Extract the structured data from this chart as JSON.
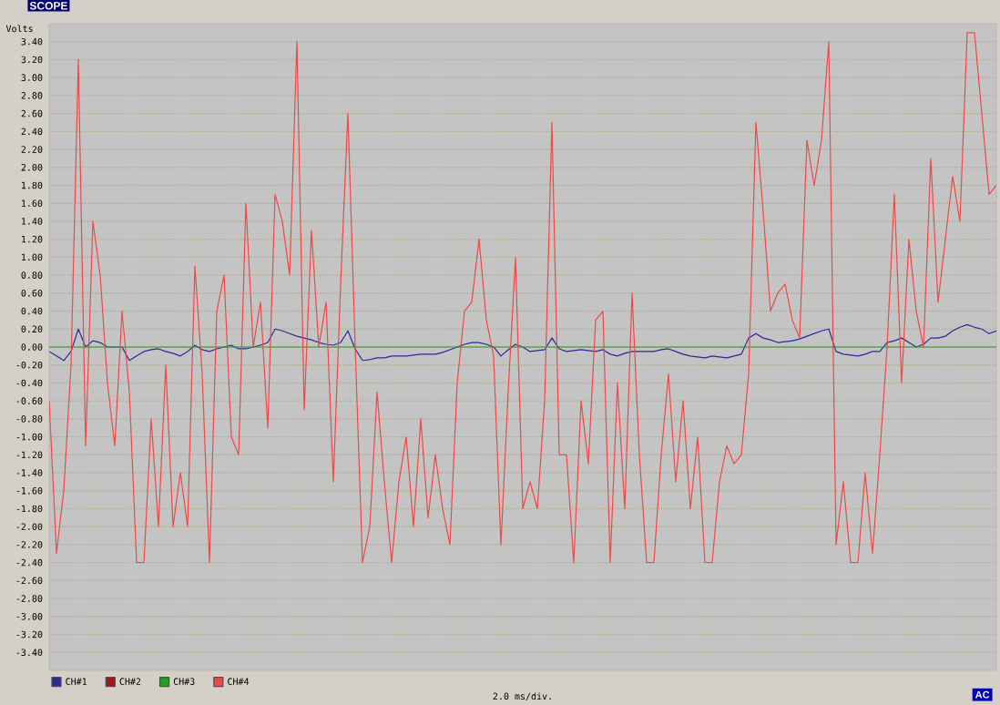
{
  "chart_data": {
    "type": "line",
    "title": "SCOPE",
    "xlabel": "2.0 ms/div.",
    "ylabel": "Volts",
    "categories": [
      null,
      null,
      null,
      null,
      null,
      null,
      null,
      null,
      null,
      null,
      null,
      null,
      null,
      null,
      null,
      null,
      null,
      null,
      null,
      null,
      null,
      null,
      null,
      null,
      null,
      null,
      null,
      null,
      null,
      null,
      null,
      null,
      null,
      null,
      null,
      null,
      null,
      null,
      null,
      null,
      null,
      null,
      null,
      null,
      null,
      null,
      null,
      null,
      null,
      null,
      null,
      null,
      null,
      null,
      null,
      null,
      null,
      null,
      null,
      null,
      null,
      null,
      null,
      null,
      null,
      null,
      null,
      null,
      null,
      null,
      null,
      null,
      null,
      null,
      null,
      null,
      null,
      null,
      null,
      null,
      null,
      null,
      null,
      null,
      null,
      null,
      null,
      null,
      null,
      null,
      null,
      null,
      null,
      null,
      null,
      null,
      null,
      null,
      null,
      null,
      null,
      null,
      null,
      null,
      null,
      null,
      null,
      null,
      null,
      null,
      null,
      null,
      null,
      null,
      null,
      null,
      null,
      null,
      null,
      null,
      null,
      null,
      null,
      null,
      null,
      null,
      null,
      null,
      null,
      null,
      null
    ],
    "ylim": [
      -3.6,
      3.6
    ],
    "yticks": [
      {
        "value": -3.4,
        "label": "-3.40"
      },
      {
        "value": -3.2,
        "label": "-3.20"
      },
      {
        "value": -3.0,
        "label": "-3.00"
      },
      {
        "value": -2.8,
        "label": "-2.80"
      },
      {
        "value": -2.6,
        "label": "-2.60"
      },
      {
        "value": -2.4,
        "label": "-2.40"
      },
      {
        "value": -2.2,
        "label": "-2.20"
      },
      {
        "value": -2.0,
        "label": "-2.00"
      },
      {
        "value": -1.8,
        "label": "-1.80"
      },
      {
        "value": -1.6,
        "label": "-1.60"
      },
      {
        "value": -1.4,
        "label": "-1.40"
      },
      {
        "value": -1.2,
        "label": "-1.20"
      },
      {
        "value": -1.0,
        "label": "-1.00"
      },
      {
        "value": -0.8,
        "label": "-0.80"
      },
      {
        "value": -0.6,
        "label": "-0.60"
      },
      {
        "value": -0.4,
        "label": "-0.40"
      },
      {
        "value": -0.2,
        "label": "-0.20"
      },
      {
        "value": 0,
        "label": "0.00"
      },
      {
        "value": 0.2,
        "label": "0.20"
      },
      {
        "value": 0.4,
        "label": "0.40"
      },
      {
        "value": 0.6,
        "label": "0.60"
      },
      {
        "value": 0.8,
        "label": "0.80"
      },
      {
        "value": 1.0,
        "label": "1.00"
      },
      {
        "value": 1.2,
        "label": "1.20"
      },
      {
        "value": 1.4,
        "label": "1.40"
      },
      {
        "value": 1.6,
        "label": "1.60"
      },
      {
        "value": 1.8,
        "label": "1.80"
      },
      {
        "value": 2.0,
        "label": "2.00"
      },
      {
        "value": 2.2,
        "label": "2.20"
      },
      {
        "value": 2.4,
        "label": "2.40"
      },
      {
        "value": 2.6,
        "label": "2.60"
      },
      {
        "value": 2.8,
        "label": "2.80"
      },
      {
        "value": 3.0,
        "label": "3.00"
      },
      {
        "value": 3.2,
        "label": "3.20"
      },
      {
        "value": 3.4,
        "label": "3.40"
      }
    ],
    "tick_labels": "y",
    "grid": "y",
    "legend": "bottom",
    "marker": "none",
    "annotations": [
      "AC"
    ],
    "series": [
      {
        "name": "CH#1",
        "color": "#2a2a9a",
        "values": [
          -0.05,
          -0.1,
          -0.15,
          -0.05,
          0.2,
          0.0,
          0.07,
          0.05,
          0.0,
          0.0,
          0.0,
          -0.15,
          -0.1,
          -0.05,
          -0.03,
          -0.02,
          -0.05,
          -0.07,
          -0.1,
          -0.05,
          0.02,
          -0.03,
          -0.05,
          -0.02,
          0.0,
          0.02,
          -0.02,
          -0.02,
          0.0,
          0.02,
          0.05,
          0.2,
          0.18,
          0.15,
          0.12,
          0.1,
          0.08,
          0.05,
          0.03,
          0.02,
          0.05,
          0.18,
          -0.02,
          -0.15,
          -0.14,
          -0.12,
          -0.12,
          -0.1,
          -0.1,
          -0.1,
          -0.09,
          -0.08,
          -0.08,
          -0.08,
          -0.06,
          -0.03,
          0.0,
          0.03,
          0.05,
          0.05,
          0.03,
          0.0,
          -0.1,
          -0.03,
          0.03,
          0.0,
          -0.05,
          -0.04,
          -0.03,
          0.1,
          -0.02,
          -0.05,
          -0.04,
          -0.03,
          -0.04,
          -0.05,
          -0.03,
          -0.08,
          -0.1,
          -0.07,
          -0.05,
          -0.05,
          -0.05,
          -0.05,
          -0.03,
          -0.02,
          -0.05,
          -0.08,
          -0.1,
          -0.11,
          -0.12,
          -0.1,
          -0.11,
          -0.12,
          -0.1,
          -0.08,
          0.1,
          0.15,
          0.1,
          0.08,
          0.05,
          0.06,
          0.07,
          0.09,
          0.12,
          0.15,
          0.18,
          0.2,
          -0.05,
          -0.08,
          -0.09,
          -0.1,
          -0.08,
          -0.05,
          -0.05,
          0.05,
          0.07,
          0.1,
          0.05,
          0.0,
          0.03,
          0.1,
          0.1,
          0.12,
          0.18,
          0.22,
          0.25,
          0.22,
          0.2,
          0.15,
          0.18
        ]
      },
      {
        "name": "CH#2",
        "color": "#a01818",
        "values": [
          null,
          null,
          null,
          null,
          null,
          null,
          null,
          null,
          null,
          null,
          null,
          null,
          null,
          null,
          null,
          null,
          null,
          null,
          null,
          null,
          null,
          null,
          null,
          null,
          null,
          null,
          null,
          null,
          null,
          null,
          null,
          null,
          null,
          null,
          null,
          null,
          null,
          null,
          null,
          null,
          null,
          null,
          null,
          null,
          null,
          null,
          null,
          null,
          null,
          null,
          null,
          null,
          null,
          null,
          null,
          null,
          null,
          null,
          null,
          null,
          null,
          null,
          null,
          null,
          null,
          null,
          null,
          null,
          null,
          null,
          null,
          null,
          null,
          null,
          null,
          null,
          null,
          null,
          null,
          null,
          null,
          null,
          null,
          null,
          null,
          null,
          null,
          null,
          null,
          null,
          null,
          null,
          null,
          null,
          null,
          null,
          null,
          null,
          null,
          null,
          null,
          null,
          null,
          null,
          null,
          null,
          null,
          null,
          null,
          null,
          null,
          null,
          null,
          null,
          null,
          null,
          null,
          null,
          null,
          null,
          null,
          null,
          null,
          null,
          null,
          null,
          null,
          null,
          null,
          null,
          null
        ]
      },
      {
        "name": "CH#3",
        "color": "#22a022",
        "values": [
          0,
          0,
          0,
          0,
          0,
          0,
          0,
          0,
          0,
          0,
          0,
          0,
          0,
          0,
          0,
          0,
          0,
          0,
          0,
          0,
          0,
          0,
          0,
          0,
          0,
          0,
          0,
          0,
          0,
          0,
          0,
          0,
          0,
          0,
          0,
          0,
          0,
          0,
          0,
          0,
          0,
          0,
          0,
          0,
          0,
          0,
          0,
          0,
          0,
          0,
          0,
          0,
          0,
          0,
          0,
          0,
          0,
          0,
          0,
          0,
          0,
          0,
          0,
          0,
          0,
          0,
          0,
          0,
          0,
          0,
          0,
          0,
          0,
          0,
          0,
          0,
          0,
          0,
          0,
          0,
          0,
          0,
          0,
          0,
          0,
          0,
          0,
          0,
          0,
          0,
          0,
          0,
          0,
          0,
          0,
          0,
          0,
          0,
          0,
          0,
          0,
          0,
          0,
          0,
          0,
          0,
          0,
          0,
          0,
          0,
          0,
          0,
          0,
          0,
          0,
          0,
          0,
          0,
          0,
          0,
          0,
          0,
          0,
          0,
          0,
          0,
          0,
          0,
          0,
          0,
          0
        ]
      },
      {
        "name": "CH#4",
        "color": "#f04848",
        "values": [
          -0.6,
          -2.3,
          -1.6,
          -0.2,
          3.2,
          -1.1,
          1.4,
          0.8,
          -0.4,
          -1.1,
          0.4,
          -0.5,
          -2.4,
          -2.4,
          -0.8,
          -2.0,
          -0.2,
          -2.0,
          -1.4,
          -2.0,
          0.9,
          -0.3,
          -2.4,
          0.4,
          0.8,
          -1.0,
          -1.2,
          1.6,
          0.0,
          0.5,
          -0.9,
          1.7,
          1.4,
          0.8,
          3.4,
          -0.7,
          1.3,
          0.0,
          0.5,
          -1.5,
          0.7,
          2.6,
          0.0,
          -2.4,
          -2.0,
          -0.5,
          -1.5,
          -2.4,
          -1.5,
          -1.0,
          -2.0,
          -0.8,
          -1.9,
          -1.2,
          -1.8,
          -2.2,
          -0.4,
          0.4,
          0.5,
          1.2,
          0.3,
          -0.1,
          -2.2,
          -0.5,
          1.0,
          -1.8,
          -1.5,
          -1.8,
          -0.6,
          2.5,
          -1.2,
          -1.2,
          -2.4,
          -0.6,
          -1.3,
          0.3,
          0.4,
          -2.4,
          -0.4,
          -1.8,
          0.6,
          -1.2,
          -2.4,
          -2.4,
          -1.2,
          -0.3,
          -1.5,
          -0.6,
          -1.8,
          -1.0,
          -2.4,
          -2.4,
          -1.5,
          -1.1,
          -1.3,
          -1.2,
          -0.3,
          2.5,
          1.5,
          0.4,
          0.6,
          0.7,
          0.3,
          0.1,
          2.3,
          1.8,
          2.3,
          3.4,
          -2.2,
          -1.5,
          -2.4,
          -2.4,
          -1.4,
          -2.3,
          -1.2,
          0.0,
          1.7,
          -0.4,
          1.2,
          0.4,
          0.0,
          2.1,
          0.5,
          1.2,
          1.9,
          1.4,
          3.5,
          3.5,
          2.6,
          1.7,
          1.8
        ]
      }
    ]
  }
}
